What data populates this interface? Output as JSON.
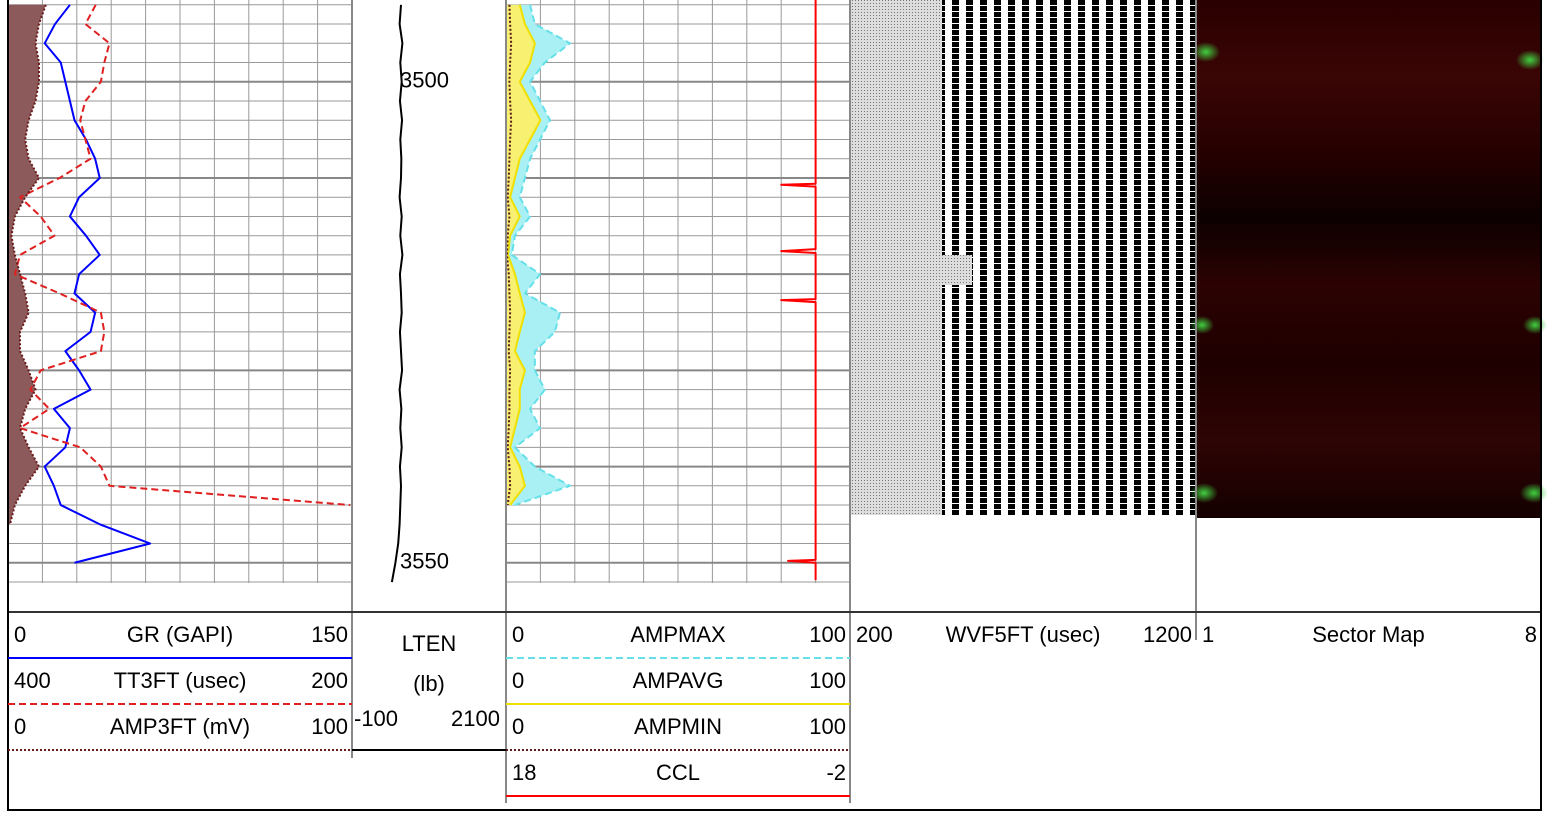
{
  "chart_data": {
    "type": "well-log",
    "ylim": [
      3491.5,
      3555
    ],
    "yticks": [
      3500,
      3510,
      3520,
      3530,
      3540,
      3550
    ],
    "depth_labels": [
      3500,
      3550
    ],
    "depths": [
      3492,
      3494,
      3496,
      3498,
      3500,
      3502,
      3504,
      3506,
      3508,
      3510,
      3512,
      3514,
      3516,
      3518,
      3520,
      3522,
      3524,
      3526,
      3528,
      3530,
      3532,
      3534,
      3536,
      3538,
      3540,
      3542,
      3544,
      3546,
      3548,
      3550,
      3552
    ],
    "tracks": [
      {
        "curves": [
          {
            "name": "GR (GAPI)",
            "left": 0,
            "right": 150,
            "color": "#0000ff",
            "style": "solid",
            "values": [
              27,
              20.5,
              16,
              23,
              25,
              27,
              29,
              34,
              38,
              40,
              31,
              27,
              34,
              40,
              31,
              29,
              38,
              36,
              25,
              31,
              36,
              20,
              27,
              25,
              16,
              20,
              23,
              40,
              62,
              29,
              null
            ]
          },
          {
            "name": "TT3FT (usec)",
            "left": 400,
            "right": 200,
            "color": "#e02020",
            "style": "dashed",
            "values": [
              349,
              355,
              341,
              344,
              346,
              355,
              358,
              355,
              352,
              370,
              393,
              381,
              373,
              393,
              396,
              370,
              346,
              344,
              346,
              381,
              387,
              376,
              393,
              358,
              346,
              341,
              201,
              null,
              null,
              null,
              null
            ]
          },
          {
            "name": "AMP3FT (mV)",
            "left": 0,
            "right": 100,
            "color": "#6b1a1a",
            "style": "dotted",
            "fill": "#8c5a5a",
            "values": [
              11,
              9,
              8,
              9,
              9,
              8,
              6,
              5,
              6,
              9,
              5,
              2,
              1,
              2,
              3.5,
              5,
              6,
              3.5,
              3.5,
              6,
              8,
              5,
              3.5,
              6,
              9,
              5,
              2,
              0.6,
              null,
              null,
              null
            ]
          }
        ]
      },
      {
        "curves": [
          {
            "name": "LTEN",
            "unit": "(lb)",
            "left": -100,
            "right": 2100,
            "color": "#000000",
            "style": "solid",
            "values": [
              600,
              580,
              620,
              590,
              610,
              585,
              615,
              590,
              605,
              600,
              580,
              610,
              590,
              620,
              585,
              600,
              610,
              585,
              600,
              615,
              580,
              605,
              590,
              610,
              585,
              600,
              590,
              580,
              560,
              520,
              470
            ]
          }
        ]
      },
      {
        "curves": [
          {
            "name": "AMPMAX",
            "left": 0,
            "right": 100,
            "color": "#66e0e8",
            "style": "dashed",
            "fill": "#a8f0f4",
            "values": [
              7,
              8.4,
              18.6,
              11.3,
              7,
              9.9,
              12.8,
              9.9,
              7,
              5.5,
              4,
              7,
              2.6,
              1.7,
              9.9,
              5.5,
              15.7,
              14.2,
              8.4,
              8.4,
              11.3,
              7,
              9.9,
              2.6,
              8.4,
              18.6,
              2.6,
              null,
              null,
              null,
              null
            ]
          },
          {
            "name": "AMPAVG",
            "left": 0,
            "right": 100,
            "color": "#f0e000",
            "style": "solid",
            "fill": "#f8f070",
            "values": [
              4,
              5.5,
              8.4,
              7,
              4,
              7,
              10,
              7,
              4,
              2.6,
              1.2,
              4,
              1.2,
              0.6,
              2.6,
              4,
              5.5,
              4,
              2.6,
              5.5,
              4,
              4,
              2.6,
              1.2,
              4,
              5.5,
              1.2,
              null,
              null,
              null,
              null
            ]
          },
          {
            "name": "AMPMIN",
            "left": 0,
            "right": 100,
            "color": "#5a1a1a",
            "style": "dotted",
            "values": [
              1,
              1.2,
              1.5,
              1.2,
              1,
              1.2,
              1.5,
              1.2,
              1,
              0.8,
              0.5,
              1,
              0.5,
              0.3,
              0.8,
              1,
              1.2,
              1,
              0.8,
              1.2,
              1,
              1,
              0.8,
              0.5,
              1,
              1.2,
              0.5,
              null,
              null,
              null,
              null
            ]
          },
          {
            "name": "CCL",
            "left": 18,
            "right": -2,
            "color": "#ff0000",
            "style": "solid",
            "depths": [
              3491.5,
              3510.6,
              3510.7,
              3510.9,
              3517.4,
              3517.6,
              3517.8,
              3522.6,
              3522.7,
              3522.9,
              3549.7,
              3549.8,
              3550,
              3551.8
            ],
            "values": [
              0,
              0,
              2,
              0,
              0,
              2,
              0,
              0,
              2,
              0,
              0,
              1.6,
              0,
              0
            ]
          }
        ]
      },
      {
        "curves": [
          {
            "name": "WVF5FT (usec)",
            "left": 200,
            "right": 1200
          }
        ]
      },
      {
        "curves": [
          {
            "name": "Sector Map",
            "left": 1,
            "right": 8
          }
        ]
      }
    ]
  }
}
